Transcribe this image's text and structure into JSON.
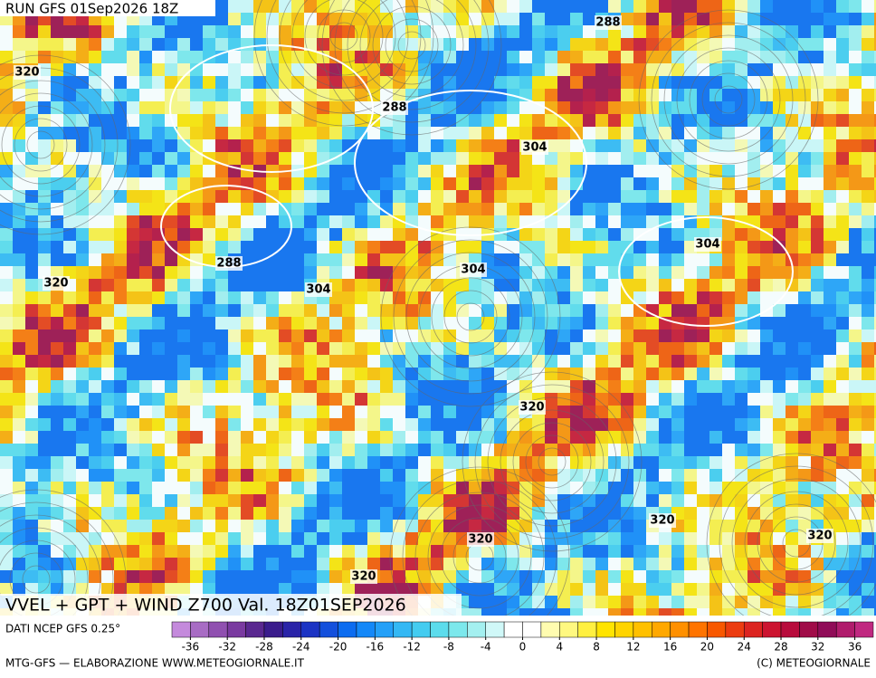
{
  "header": {
    "title": "RUN GFS 01Sep2026 18Z"
  },
  "map": {
    "contour_labels": [
      320,
      288,
      288,
      304,
      304,
      320,
      288,
      304,
      304,
      320,
      320,
      320,
      320,
      320
    ]
  },
  "caption": "VVEL + GPT + WIND Z700 Val. 18Z01SEP2026",
  "source": "DATI NCEP GFS 0.25°",
  "colorbar": {
    "range": [
      -38,
      38
    ],
    "ticks": [
      -36,
      -32,
      -28,
      -24,
      -20,
      -16,
      -12,
      -8,
      -4,
      0,
      4,
      8,
      12,
      16,
      20,
      24,
      28,
      32,
      36
    ],
    "colors": [
      "#c48adc",
      "#a86cc4",
      "#9050b0",
      "#7a3aa0",
      "#5a2890",
      "#3a1c8c",
      "#2a24a8",
      "#1c34c4",
      "#1450dc",
      "#0c6cf0",
      "#1488f8",
      "#24a0f8",
      "#34b8f4",
      "#44ccf0",
      "#5cdcec",
      "#7ce8ec",
      "#a4f0f0",
      "#d0f8f8",
      "#ffffff",
      "#ffffff",
      "#fffcb0",
      "#fff880",
      "#fff040",
      "#ffe400",
      "#ffd400",
      "#ffc000",
      "#ffa800",
      "#ff9000",
      "#ff7400",
      "#f85800",
      "#ec3c10",
      "#dc2420",
      "#cc1430",
      "#b80c3c",
      "#a00c48",
      "#900c58",
      "#b01c6c",
      "#c02880"
    ]
  },
  "footer": {
    "left": "MTG-GFS — ELABORAZIONE WWW.METEOGIORNALE.IT",
    "right": "(C) METEOGIORNALE"
  }
}
